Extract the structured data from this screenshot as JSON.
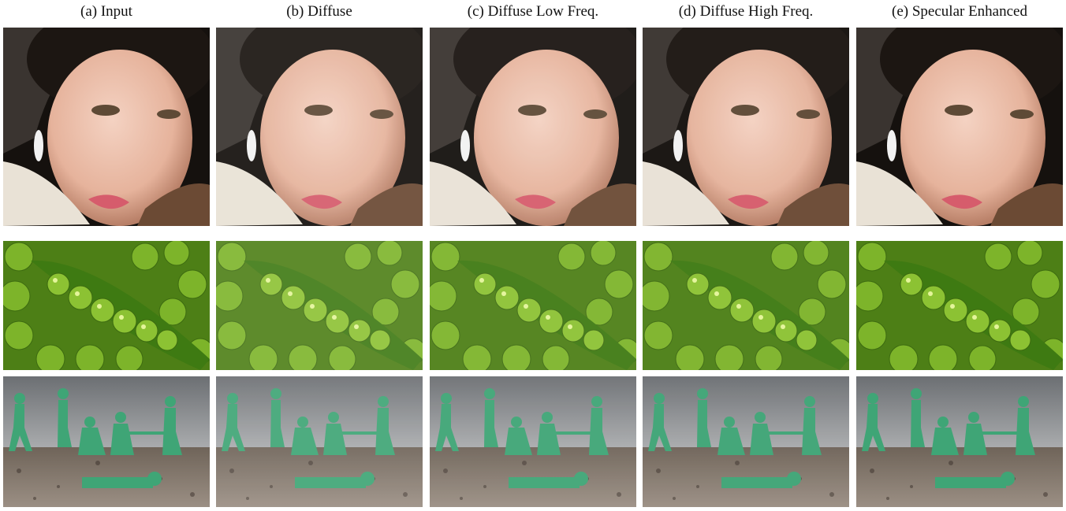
{
  "headers": [
    "(a) Input",
    "(b) Diffuse",
    "(c) Diffuse Low Freq.",
    "(d) Diffuse High Freq.",
    "(e) Specular Enhanced"
  ]
}
